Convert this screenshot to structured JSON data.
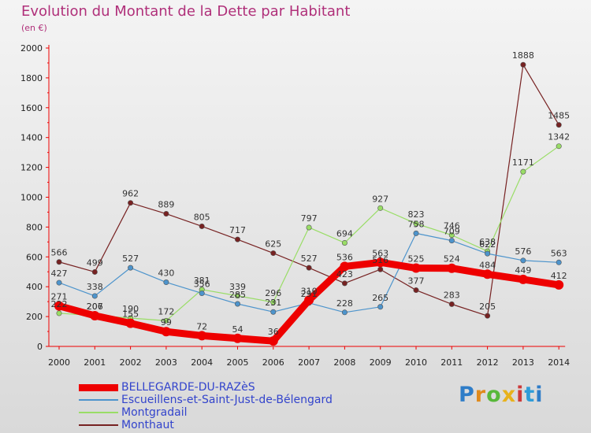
{
  "chart_data": {
    "type": "line",
    "title": "Evolution du Montant de la Dette par Habitant",
    "subtitle": "(en €)",
    "x": [
      2000,
      2001,
      2002,
      2003,
      2004,
      2005,
      2006,
      2007,
      2008,
      2009,
      2010,
      2011,
      2012,
      2013,
      2014
    ],
    "yticks": [
      0,
      200,
      400,
      600,
      800,
      1000,
      1200,
      1400,
      1600,
      1800,
      2000
    ],
    "ylim": [
      0,
      2000
    ],
    "grid": false,
    "series": [
      {
        "name": "BELLEGARDE-DU-RAZèS",
        "color": "#ee0000",
        "values": [
          271,
          206,
          155,
          99,
          72,
          54,
          36,
          310,
          536,
          563,
          525,
          524,
          484,
          449,
          412
        ]
      },
      {
        "name": "Escueillens-et-Saint-Just-de-Bélengard",
        "color": "#4d94cc",
        "values": [
          427,
          338,
          527,
          430,
          356,
          285,
          231,
          291,
          228,
          265,
          758,
          709,
          622,
          576,
          563
        ]
      },
      {
        "name": "Montgradail",
        "color": "#99dd66",
        "values": [
          222,
          207,
          190,
          172,
          381,
          339,
          296,
          797,
          694,
          927,
          823,
          746,
          638,
          1171,
          1342
        ]
      },
      {
        "name": "Monthaut",
        "color": "#772222",
        "values": [
          566,
          499,
          962,
          889,
          805,
          717,
          625,
          527,
          423,
          516,
          377,
          283,
          205,
          1888,
          1485
        ]
      }
    ]
  },
  "brand": "Proxiti"
}
